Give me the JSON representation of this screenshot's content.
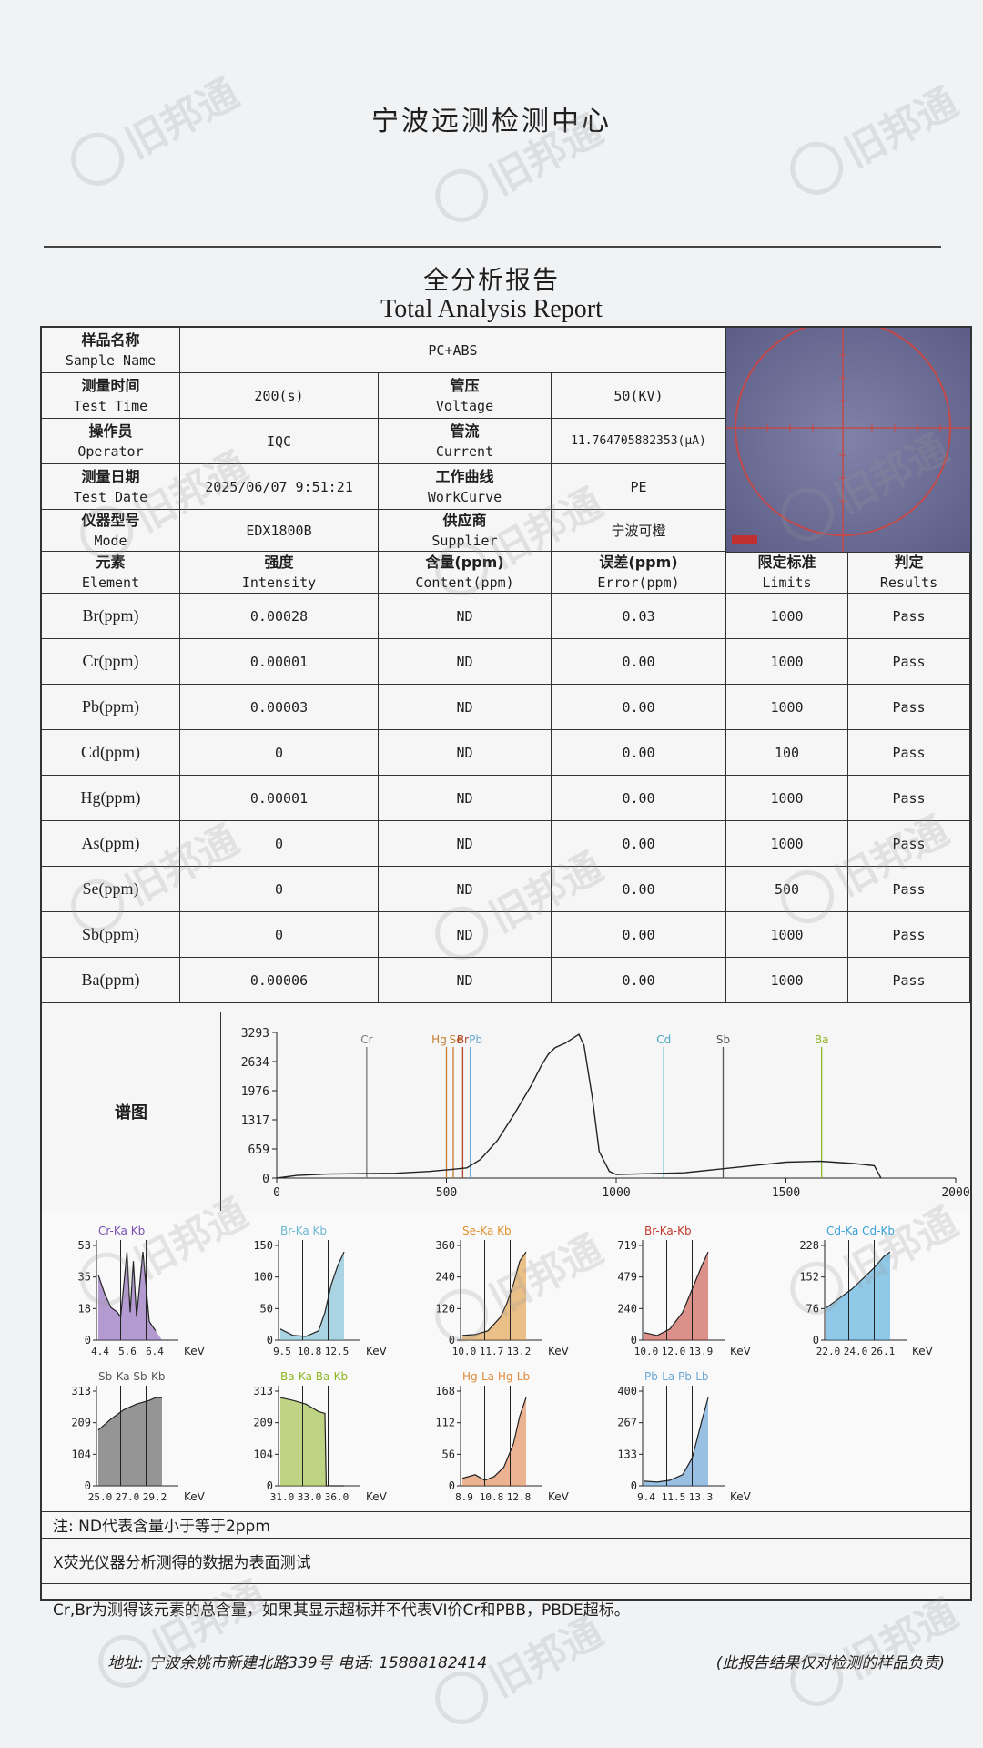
{
  "header": {
    "lab_name": "宁波远测检测中心",
    "report_title_cn": "全分析报告",
    "report_title_en": "Total Analysis Report"
  },
  "info": {
    "sample_name": {
      "label_cn": "样品名称",
      "label_en": "Sample Name",
      "value": "PC+ABS"
    },
    "test_time": {
      "label_cn": "测量时间",
      "label_en": "Test Time",
      "value": "200(s)"
    },
    "voltage": {
      "label_cn": "管压",
      "label_en": "Voltage",
      "value": "50(KV)"
    },
    "operator": {
      "label_cn": "操作员",
      "label_en": "Operator",
      "value": "IQC"
    },
    "current": {
      "label_cn": "管流",
      "label_en": "Current",
      "value": "11.764705882353(μA)"
    },
    "test_date": {
      "label_cn": "测量日期",
      "label_en": "Test Date",
      "value": "2025/06/07 9:51:21"
    },
    "workcurve": {
      "label_cn": "工作曲线",
      "label_en": "WorkCurve",
      "value": "PE"
    },
    "mode": {
      "label_cn": "仪器型号",
      "label_en": "Mode",
      "value": "EDX1800B"
    },
    "supplier": {
      "label_cn": "供应商",
      "label_en": "Supplier",
      "value": "宁波可橙"
    }
  },
  "results_table": {
    "headers": [
      {
        "cn": "元素",
        "en": "Element"
      },
      {
        "cn": "强度",
        "en": "Intensity"
      },
      {
        "cn": "含量(ppm)",
        "en": "Content(ppm)"
      },
      {
        "cn": "误差(ppm)",
        "en": "Error(ppm)"
      },
      {
        "cn": "限定标准",
        "en": "Limits"
      },
      {
        "cn": "判定",
        "en": "Results"
      }
    ],
    "rows": [
      {
        "element": "Br(ppm)",
        "intensity": "0.00028",
        "content": "ND",
        "error": "0.03",
        "limit": "1000",
        "result": "Pass"
      },
      {
        "element": "Cr(ppm)",
        "intensity": "0.00001",
        "content": "ND",
        "error": "0.00",
        "limit": "1000",
        "result": "Pass"
      },
      {
        "element": "Pb(ppm)",
        "intensity": "0.00003",
        "content": "ND",
        "error": "0.00",
        "limit": "1000",
        "result": "Pass"
      },
      {
        "element": "Cd(ppm)",
        "intensity": "0",
        "content": "ND",
        "error": "0.00",
        "limit": "100",
        "result": "Pass"
      },
      {
        "element": "Hg(ppm)",
        "intensity": "0.00001",
        "content": "ND",
        "error": "0.00",
        "limit": "1000",
        "result": "Pass"
      },
      {
        "element": "As(ppm)",
        "intensity": "0",
        "content": "ND",
        "error": "0.00",
        "limit": "1000",
        "result": "Pass"
      },
      {
        "element": "Se(ppm)",
        "intensity": "0",
        "content": "ND",
        "error": "0.00",
        "limit": "500",
        "result": "Pass"
      },
      {
        "element": "Sb(ppm)",
        "intensity": "0",
        "content": "ND",
        "error": "0.00",
        "limit": "1000",
        "result": "Pass"
      },
      {
        "element": "Ba(ppm)",
        "intensity": "0.00006",
        "content": "ND",
        "error": "0.00",
        "limit": "1000",
        "result": "Pass"
      }
    ]
  },
  "spectrum": {
    "label": "谱图",
    "chart_data": {
      "type": "line",
      "title": "",
      "xlim": [
        0,
        2000
      ],
      "ylim": [
        0,
        3293
      ],
      "x_ticks": [
        "0",
        "500",
        "1000",
        "1500",
        "2000"
      ],
      "y_ticks": [
        "0",
        "659",
        "1317",
        "1976",
        "2634",
        "3293"
      ],
      "markers": [
        {
          "label": "Cr",
          "x": 265,
          "color": "#777777"
        },
        {
          "label": "Hg",
          "x": 500,
          "color": "#c77a2a"
        },
        {
          "label": "Se",
          "x": 520,
          "color": "#c77a2a"
        },
        {
          "label": "Br",
          "x": 548,
          "color": "#b3462a"
        },
        {
          "label": "Pb",
          "x": 570,
          "color": "#6aa7d6"
        },
        {
          "label": "Cd",
          "x": 1140,
          "color": "#47a9c4"
        },
        {
          "label": "Sb",
          "x": 1315,
          "color": "#555555"
        },
        {
          "label": "Ba",
          "x": 1605,
          "color": "#8fb523"
        }
      ],
      "curve": [
        [
          0,
          0
        ],
        [
          60,
          60
        ],
        [
          150,
          90
        ],
        [
          250,
          100
        ],
        [
          350,
          110
        ],
        [
          450,
          150
        ],
        [
          520,
          200
        ],
        [
          560,
          230
        ],
        [
          600,
          420
        ],
        [
          650,
          850
        ],
        [
          700,
          1450
        ],
        [
          750,
          2100
        ],
        [
          780,
          2550
        ],
        [
          800,
          2800
        ],
        [
          820,
          2950
        ],
        [
          850,
          3050
        ],
        [
          870,
          3150
        ],
        [
          890,
          3250
        ],
        [
          905,
          3000
        ],
        [
          930,
          1800
        ],
        [
          950,
          600
        ],
        [
          980,
          150
        ],
        [
          1000,
          80
        ],
        [
          1200,
          120
        ],
        [
          1300,
          200
        ],
        [
          1400,
          280
        ],
        [
          1500,
          360
        ],
        [
          1600,
          380
        ],
        [
          1700,
          330
        ],
        [
          1760,
          280
        ],
        [
          1780,
          0
        ]
      ]
    }
  },
  "mini_charts": [
    {
      "label": "Cr-Ka Kb",
      "label_color": "#7a4fb0",
      "x_label": "KeV",
      "x_ticks": [
        "4.4",
        "5.6",
        "6.4"
      ],
      "y_ticks": [
        "53",
        "35",
        "18",
        "0"
      ],
      "color": "#7a4fb0",
      "points": [
        [
          0,
          0.7
        ],
        [
          0.1,
          0.5
        ],
        [
          0.2,
          0.35
        ],
        [
          0.3,
          0.3
        ],
        [
          0.35,
          0.25
        ],
        [
          0.45,
          0.95
        ],
        [
          0.5,
          0.3
        ],
        [
          0.55,
          0.85
        ],
        [
          0.6,
          0.25
        ],
        [
          0.7,
          0.95
        ],
        [
          0.8,
          0.2
        ],
        [
          0.9,
          0.1
        ]
      ]
    },
    {
      "label": "Br-Ka Kb",
      "label_color": "#6cb7d0",
      "x_label": "KeV",
      "x_ticks": [
        "9.5",
        "10.8",
        "12.5"
      ],
      "y_ticks": [
        "150",
        "100",
        "50",
        "0"
      ],
      "color": "#6cb7d0",
      "points": [
        [
          0,
          0.12
        ],
        [
          0.2,
          0.05
        ],
        [
          0.4,
          0.04
        ],
        [
          0.6,
          0.1
        ],
        [
          0.7,
          0.3
        ],
        [
          0.8,
          0.6
        ],
        [
          0.9,
          0.8
        ],
        [
          1,
          0.95
        ]
      ]
    },
    {
      "label": "Se-Ka Kb",
      "label_color": "#e0902a",
      "x_label": "KeV",
      "x_ticks": [
        "10.0",
        "11.7",
        "13.2"
      ],
      "y_ticks": [
        "360",
        "240",
        "120",
        "0"
      ],
      "color": "#e0902a",
      "points": [
        [
          0,
          0.05
        ],
        [
          0.2,
          0.06
        ],
        [
          0.4,
          0.1
        ],
        [
          0.6,
          0.25
        ],
        [
          0.7,
          0.4
        ],
        [
          0.8,
          0.6
        ],
        [
          0.9,
          0.85
        ],
        [
          1,
          0.95
        ]
      ]
    },
    {
      "label": "Br-Ka-Kb",
      "label_color": "#c23a2c",
      "x_label": "KeV",
      "x_ticks": [
        "10.0",
        "12.0",
        "13.9"
      ],
      "y_ticks": [
        "719",
        "479",
        "240",
        "0"
      ],
      "color": "#c23a2c",
      "points": [
        [
          0,
          0.08
        ],
        [
          0.2,
          0.05
        ],
        [
          0.4,
          0.12
        ],
        [
          0.6,
          0.3
        ],
        [
          0.75,
          0.55
        ],
        [
          0.9,
          0.8
        ],
        [
          1,
          0.95
        ]
      ]
    },
    {
      "label": "Cd-Ka Cd-Kb",
      "label_color": "#3aa0d8",
      "x_label": "KeV",
      "x_ticks": [
        "22.0",
        "24.0",
        "26.1"
      ],
      "y_ticks": [
        "228",
        "152",
        "76",
        "0"
      ],
      "color": "#3aa0d8",
      "points": [
        [
          0,
          0.35
        ],
        [
          0.2,
          0.45
        ],
        [
          0.4,
          0.55
        ],
        [
          0.6,
          0.68
        ],
        [
          0.75,
          0.78
        ],
        [
          0.9,
          0.9
        ],
        [
          1,
          0.95
        ]
      ]
    },
    {
      "label": "Sb-Ka Sb-Kb",
      "label_color": "#555555",
      "x_label": "KeV",
      "x_ticks": [
        "25.0",
        "27.0",
        "29.2"
      ],
      "y_ticks": [
        "313",
        "209",
        "104",
        "0"
      ],
      "color": "#444444",
      "points": [
        [
          0,
          0.6
        ],
        [
          0.2,
          0.72
        ],
        [
          0.4,
          0.82
        ],
        [
          0.6,
          0.88
        ],
        [
          0.8,
          0.92
        ],
        [
          0.9,
          0.95
        ],
        [
          1,
          0.95
        ]
      ]
    },
    {
      "label": "Ba-Ka Ba-Kb",
      "label_color": "#8fb523",
      "x_label": "KeV",
      "x_ticks": [
        "31.0",
        "33.0",
        "36.0"
      ],
      "y_ticks": [
        "313",
        "209",
        "104",
        "0"
      ],
      "color": "#8fb523",
      "points": [
        [
          0,
          0.95
        ],
        [
          0.2,
          0.92
        ],
        [
          0.4,
          0.88
        ],
        [
          0.6,
          0.8
        ],
        [
          0.7,
          0.78
        ],
        [
          0.72,
          0
        ],
        [
          1,
          0
        ]
      ]
    },
    {
      "label": "Hg-La Hg-Lb",
      "label_color": "#e08a3a",
      "x_label": "KeV",
      "x_ticks": [
        "8.9",
        "10.8",
        "12.8"
      ],
      "y_ticks": [
        "168",
        "112",
        "56",
        "0"
      ],
      "color": "#e07a3a",
      "points": [
        [
          0,
          0.08
        ],
        [
          0.2,
          0.12
        ],
        [
          0.35,
          0.06
        ],
        [
          0.5,
          0.1
        ],
        [
          0.65,
          0.2
        ],
        [
          0.8,
          0.45
        ],
        [
          0.9,
          0.75
        ],
        [
          1,
          0.95
        ]
      ]
    },
    {
      "label": "Pb-La Pb-Lb",
      "label_color": "#6aa7d6",
      "x_label": "KeV",
      "x_ticks": [
        "9.4",
        "11.5",
        "13.3"
      ],
      "y_ticks": [
        "400",
        "267",
        "133",
        "0"
      ],
      "color": "#4a8fd0",
      "points": [
        [
          0,
          0.05
        ],
        [
          0.2,
          0.04
        ],
        [
          0.4,
          0.06
        ],
        [
          0.6,
          0.12
        ],
        [
          0.75,
          0.3
        ],
        [
          0.9,
          0.7
        ],
        [
          1,
          0.95
        ]
      ]
    }
  ],
  "notes": {
    "note1": "注: ND代表含量小于等于2ppm",
    "note2": "X荧光仪器分析测得的数据为表面测试",
    "note3": "Cr,Br为测得该元素的总含量，如果其显示超标并不代表VI价Cr和PBB，PBDE超标。"
  },
  "footer": {
    "address": "地址: 宁波余姚市新建北路339号 电话: 15888182414",
    "disclaimer": "(此报告结果仅对检测的样品负责)"
  },
  "watermark": {
    "text": "旧邦通",
    "color": "#969696"
  }
}
